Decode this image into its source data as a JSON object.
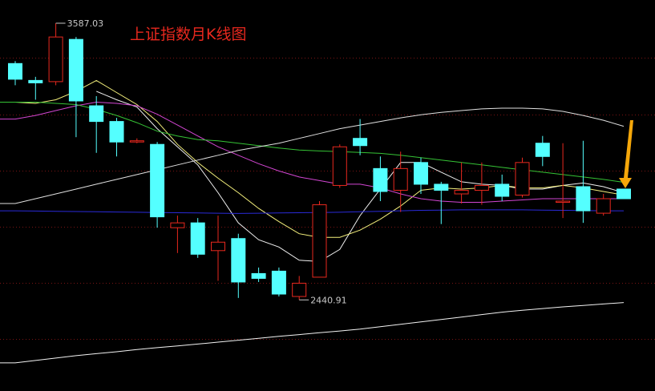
{
  "title": "上证指数月K线图",
  "colors": {
    "background": "#000000",
    "up": "#e8281e",
    "down": "#54ffff",
    "grid": "#7a1414",
    "ma5": "#f0f0f0",
    "ma10": "#f4f07c",
    "ma20": "#d246d2",
    "ma30": "#35c335",
    "ma60": "#e0e0e0",
    "ma120": "#2a2ad8",
    "ma250": "#f2f2f2",
    "arrow": "#f5a70a"
  },
  "chart_data": {
    "type": "candlestick",
    "annotations": [
      {
        "text": "3587.03",
        "kind": "high"
      },
      {
        "text": "2440.91",
        "kind": "low"
      }
    ],
    "candles": [
      {
        "o": 3420,
        "h": 3430,
        "l": 3330,
        "c": 3355
      },
      {
        "o": 3350,
        "h": 3365,
        "l": 3270,
        "c": 3340
      },
      {
        "o": 3345,
        "h": 3587.03,
        "l": 3330,
        "c": 3530
      },
      {
        "o": 3520,
        "h": 3530,
        "l": 3115,
        "c": 3265
      },
      {
        "o": 3245,
        "h": 3285,
        "l": 3050,
        "c": 3180
      },
      {
        "o": 3180,
        "h": 3195,
        "l": 3035,
        "c": 3095
      },
      {
        "o": 3095,
        "h": 3110,
        "l": 3090,
        "c": 3100
      },
      {
        "o": 3085,
        "h": 3095,
        "l": 2740,
        "c": 2785
      },
      {
        "o": 2740,
        "h": 2790,
        "l": 2635,
        "c": 2760
      },
      {
        "o": 2760,
        "h": 2780,
        "l": 2615,
        "c": 2630
      },
      {
        "o": 2645,
        "h": 2790,
        "l": 2520,
        "c": 2680
      },
      {
        "o": 2695,
        "h": 2715,
        "l": 2449,
        "c": 2515
      },
      {
        "o": 2550,
        "h": 2575,
        "l": 2515,
        "c": 2530
      },
      {
        "o": 2560,
        "h": 2575,
        "l": 2455,
        "c": 2465
      },
      {
        "o": 2455,
        "h": 2540,
        "l": 2440.91,
        "c": 2510
      },
      {
        "o": 2535,
        "h": 2850,
        "l": 2535,
        "c": 2835
      },
      {
        "o": 2915,
        "h": 3085,
        "l": 2905,
        "c": 3075
      },
      {
        "o": 3110,
        "h": 3190,
        "l": 3040,
        "c": 3080
      },
      {
        "o": 2985,
        "h": 3035,
        "l": 2850,
        "c": 2890
      },
      {
        "o": 2895,
        "h": 3055,
        "l": 2805,
        "c": 2985
      },
      {
        "o": 3010,
        "h": 3030,
        "l": 2880,
        "c": 2920
      },
      {
        "o": 2920,
        "h": 2930,
        "l": 2755,
        "c": 2895
      },
      {
        "o": 2880,
        "h": 3010,
        "l": 2840,
        "c": 2895
      },
      {
        "o": 2895,
        "h": 3010,
        "l": 2835,
        "c": 2915
      },
      {
        "o": 2920,
        "h": 2960,
        "l": 2850,
        "c": 2870
      },
      {
        "o": 2875,
        "h": 3030,
        "l": 2865,
        "c": 3010
      },
      {
        "o": 3090,
        "h": 3120,
        "l": 2995,
        "c": 3035
      },
      {
        "o": 2850,
        "h": 3090,
        "l": 2780,
        "c": 2850
      },
      {
        "o": 2910,
        "h": 3100,
        "l": 2760,
        "c": 2810
      },
      {
        "o": 2800,
        "h": 2880,
        "l": 2790,
        "c": 2860
      },
      {
        "o": 2900,
        "h": 2900,
        "l": 2860,
        "c": 2860
      }
    ],
    "moving_averages": [
      {
        "key": "ma5",
        "values": [
          null,
          null,
          null,
          null,
          3305,
          3270,
          3240,
          3150,
          3075,
          3000,
          2885,
          2760,
          2690,
          2660,
          2605,
          2600,
          2650,
          2790,
          2900,
          3010,
          3010,
          2970,
          2930,
          2920,
          2915,
          2900,
          2900,
          2915,
          2925,
          2910,
          2885
        ]
      },
      {
        "key": "ma10",
        "values": [
          3260,
          3255,
          3270,
          3305,
          3350,
          3300,
          3250,
          3180,
          3085,
          3010,
          2945,
          2885,
          2820,
          2765,
          2715,
          2700,
          2700,
          2730,
          2775,
          2830,
          2895,
          2905,
          2900,
          2905,
          2915,
          2905,
          2905,
          2915,
          2905,
          2890,
          2875
        ]
      },
      {
        "key": "ma20",
        "values": [
          3190,
          3205,
          3225,
          3245,
          3260,
          3255,
          3245,
          3210,
          3165,
          3120,
          3075,
          3040,
          3005,
          2975,
          2950,
          2935,
          2920,
          2920,
          2905,
          2880,
          2860,
          2850,
          2845,
          2845,
          2850,
          2855,
          2860,
          2860,
          2860,
          2860,
          2860
        ]
      },
      {
        "key": "ma30",
        "values": [
          3260,
          3260,
          3255,
          3250,
          3230,
          3205,
          3175,
          3140,
          3120,
          3105,
          3100,
          3090,
          3080,
          3070,
          3062,
          3058,
          3055,
          3052,
          3048,
          3040,
          3030,
          3020,
          3010,
          3000,
          2990,
          2980,
          2970,
          2960,
          2950,
          2940,
          2928
        ]
      },
      {
        "key": "ma60",
        "values": [
          2840,
          2860,
          2880,
          2900,
          2920,
          2940,
          2960,
          2980,
          3000,
          3020,
          3040,
          3060,
          3075,
          3090,
          3110,
          3130,
          3150,
          3165,
          3180,
          3195,
          3208,
          3218,
          3225,
          3232,
          3235,
          3235,
          3232,
          3222,
          3205,
          3185,
          3160
        ]
      },
      {
        "key": "ma120",
        "values": [
          2810,
          2809,
          2808,
          2807,
          2806,
          2805,
          2804,
          2803,
          2802,
          2801,
          2800,
          2799,
          2800,
          2801,
          2802,
          2803,
          2804,
          2806,
          2808,
          2810,
          2812,
          2813,
          2814,
          2814,
          2814,
          2814,
          2813,
          2812,
          2811,
          2810,
          2810
        ]
      },
      {
        "key": "ma250",
        "values": [
          2180,
          2190,
          2200,
          2210,
          2218,
          2226,
          2235,
          2243,
          2250,
          2258,
          2266,
          2274,
          2282,
          2290,
          2297,
          2305,
          2312,
          2320,
          2330,
          2340,
          2350,
          2360,
          2370,
          2380,
          2390,
          2398,
          2405,
          2412,
          2418,
          2424,
          2430
        ]
      }
    ],
    "price_range": [
      2100,
      3650
    ]
  }
}
